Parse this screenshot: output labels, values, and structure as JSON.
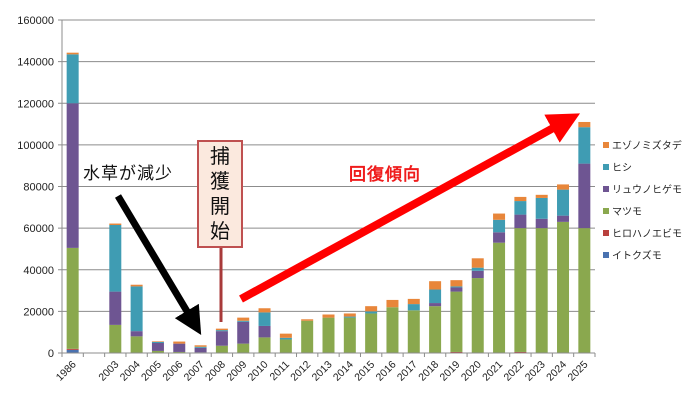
{
  "chart_data": {
    "type": "bar",
    "stacked": true,
    "title": "",
    "xlabel": "",
    "ylabel": "",
    "ylim": [
      0,
      160000
    ],
    "yticks": [
      0,
      20000,
      40000,
      60000,
      80000,
      100000,
      120000,
      140000,
      160000
    ],
    "grid": true,
    "legend_position": "right",
    "categories": [
      "1986",
      "",
      "2003",
      "2004",
      "2005",
      "2006",
      "2007",
      "2008",
      "2009",
      "2010",
      "2011",
      "2012",
      "2013",
      "2014",
      "2015",
      "2016",
      "2017",
      "2018",
      "2019",
      "2020",
      "2021",
      "2022",
      "2023",
      "2024",
      "2025"
    ],
    "series": [
      {
        "name": "イトクズモ",
        "color": "#4a72b0",
        "values": [
          1500,
          0,
          0,
          0,
          0,
          0,
          0,
          0,
          0,
          0,
          0,
          0,
          0,
          0,
          0,
          0,
          0,
          0,
          0,
          0,
          0,
          0,
          0,
          0,
          0
        ]
      },
      {
        "name": "ヒロハノエビモ",
        "color": "#b9403d",
        "values": [
          500,
          0,
          0,
          0,
          0,
          0,
          0,
          0,
          0,
          0,
          0,
          0,
          0,
          0,
          0,
          0,
          0,
          0,
          500,
          0,
          0,
          500,
          0,
          0,
          0
        ]
      },
      {
        "name": "マツモ",
        "color": "#8aa84e",
        "values": [
          48500,
          0,
          13500,
          8000,
          1000,
          500,
          300,
          3500,
          4500,
          7500,
          6500,
          15500,
          17000,
          17000,
          19000,
          22000,
          20500,
          22500,
          29000,
          36000,
          53000,
          59500,
          60000,
          63000,
          60000
        ]
      },
      {
        "name": "リュウノヒゲモ",
        "color": "#6e5592",
        "values": [
          69500,
          0,
          16000,
          2500,
          3800,
          4000,
          2200,
          7000,
          10500,
          5500,
          0,
          0,
          0,
          0,
          0,
          0,
          0,
          1500,
          2000,
          3500,
          5000,
          6500,
          4500,
          3000,
          31000
        ]
      },
      {
        "name": "ヒシ",
        "color": "#3f9cb3",
        "values": [
          23500,
          0,
          32000,
          21500,
          500,
          0,
          500,
          500,
          500,
          6500,
          800,
          0,
          0,
          500,
          1000,
          0,
          3000,
          6500,
          500,
          1500,
          6000,
          6500,
          10000,
          12500,
          17500
        ]
      },
      {
        "name": "エゾノミズタデ",
        "color": "#e8863a",
        "values": [
          800,
          0,
          700,
          800,
          300,
          1000,
          700,
          700,
          1500,
          2000,
          2000,
          700,
          1500,
          1500,
          2500,
          3500,
          2500,
          4000,
          3000,
          4500,
          3000,
          2000,
          1500,
          2500,
          2500
        ]
      }
    ],
    "legend_order": [
      "エゾノミズタデ",
      "ヒシ",
      "リュウノヒゲモ",
      "マツモ",
      "ヒロハノエビモ",
      "イトクズモ"
    ],
    "annotations": [
      {
        "text": "水草が減少",
        "type": "arrow",
        "color": "#000000",
        "from_year": "2003",
        "to_year": "2007"
      },
      {
        "text": "捕獲開始",
        "type": "callout-box",
        "at_year": "2008"
      },
      {
        "text": "回復傾向",
        "type": "arrow",
        "color": "#ff0000",
        "from_year": "2009",
        "to_year": "2025"
      }
    ]
  },
  "annotations": {
    "decline_label": "水草が減少",
    "capture_chars": [
      "捕",
      "獲",
      "開",
      "始"
    ],
    "recovery_label": "回復傾向"
  }
}
